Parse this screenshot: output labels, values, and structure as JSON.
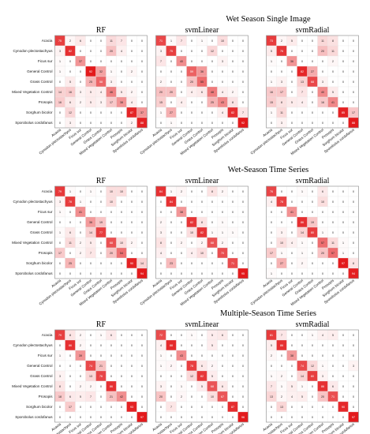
{
  "figure": {
    "sections": [
      {
        "title": "Wet Season Single Image",
        "panels": [
          {
            "method": "RF",
            "matrix": [
              [
                75,
                2,
                6,
                0,
                0,
                11,
                7,
                0,
                0
              ],
              [
                3,
                82,
                0,
                0,
                0,
                20,
                4,
                0,
                0
              ],
              [
                1,
                0,
                37,
                0,
                0,
                0,
                0,
                0,
                0
              ],
              [
                1,
                0,
                0,
                92,
                32,
                1,
                0,
                2,
                0
              ],
              [
                0,
                5,
                0,
                25,
                58,
                3,
                0,
                0,
                0
              ],
              [
                14,
                16,
                3,
                5,
                4,
                46,
                5,
                2,
                0
              ],
              [
                16,
                6,
                2,
                5,
                3,
                17,
                38,
                4,
                0
              ],
              [
                0,
                12,
                0,
                0,
                0,
                0,
                0,
                87,
                37
              ],
              [
                0,
                3,
                0,
                0,
                0,
                0,
                0,
                2,
                88
              ]
            ]
          },
          {
            "method": "svmLinear",
            "matrix": [
              [
                71,
                1,
                7,
                0,
                1,
                0,
                10,
                0,
                0
              ],
              [
                3,
                75,
                0,
                0,
                0,
                12,
                0,
                0,
                0
              ],
              [
                7,
                0,
                40,
                0,
                0,
                0,
                3,
                0,
                0
              ],
              [
                0,
                0,
                0,
                59,
                36,
                0,
                0,
                0,
                0
              ],
              [
                2,
                0,
                0,
                20,
                55,
                0,
                0,
                0,
                0
              ],
              [
                20,
                20,
                0,
                4,
                6,
                48,
                4,
                2,
                0
              ],
              [
                15,
                0,
                4,
                0,
                0,
                25,
                43,
                8,
                0
              ],
              [
                1,
                27,
                0,
                0,
                0,
                0,
                4,
                82,
                7
              ],
              [
                0,
                1,
                0,
                0,
                0,
                0,
                0,
                0,
                92
              ]
            ]
          },
          {
            "method": "svmRadial",
            "matrix": [
              [
                73,
                2,
                5,
                0,
                0,
                11,
                8,
                0,
                0
              ],
              [
                5,
                76,
                0,
                0,
                0,
                20,
                11,
                0,
                0
              ],
              [
                1,
                0,
                36,
                0,
                0,
                0,
                2,
                0,
                0
              ],
              [
                0,
                0,
                0,
                82,
                27,
                0,
                0,
                0,
                0
              ],
              [
                1,
                3,
                0,
                13,
                68,
                3,
                0,
                0,
                0
              ],
              [
                16,
                17,
                0,
                7,
                0,
                40,
                5,
                0,
                0
              ],
              [
                15,
                8,
                5,
                4,
                0,
                16,
                41,
                0,
                0
              ],
              [
                1,
                11,
                0,
                0,
                0,
                0,
                0,
                85,
                17
              ],
              [
                0,
                3,
                0,
                0,
                0,
                0,
                0,
                0,
                88
              ]
            ]
          }
        ]
      },
      {
        "title": "Wet-Season Time Series",
        "panels": [
          {
            "method": "RF",
            "matrix": [
              [
                79,
                1,
                0,
                1,
                0,
                10,
                10,
                0,
                0
              ],
              [
                3,
                78,
                1,
                0,
                0,
                10,
                0,
                0,
                0
              ],
              [
                1,
                0,
                41,
                0,
                0,
                0,
                0,
                0,
                0
              ],
              [
                0,
                0,
                0,
                36,
                19,
                0,
                0,
                0,
                0
              ],
              [
                1,
                6,
                0,
                14,
                77,
                0,
                0,
                0,
                0
              ],
              [
                0,
                11,
                2,
                5,
                0,
                68,
                10,
                2,
                0
              ],
              [
                17,
                0,
                2,
                7,
                0,
                20,
                54,
                0,
                0
              ],
              [
                0,
                25,
                0,
                0,
                0,
                0,
                0,
                90,
                14
              ],
              [
                0,
                0,
                0,
                0,
                0,
                0,
                0,
                0,
                94
              ]
            ]
          },
          {
            "method": "svmLinear",
            "matrix": [
              [
                84,
                1,
                2,
                0,
                0,
                8,
                2,
                0,
                0
              ],
              [
                0,
                84,
                0,
                0,
                0,
                0,
                0,
                0,
                0
              ],
              [
                0,
                0,
                38,
                0,
                0,
                0,
                0,
                0,
                0
              ],
              [
                2,
                0,
                0,
                82,
                8,
                0,
                1,
                0,
                0
              ],
              [
                3,
                0,
                0,
                10,
                82,
                1,
                1,
                1,
                0
              ],
              [
                8,
                0,
                2,
                0,
                2,
                68,
                2,
                0,
                0
              ],
              [
                4,
                0,
                0,
                4,
                10,
                0,
                70,
                0,
                0
              ],
              [
                0,
                23,
                0,
                0,
                0,
                0,
                0,
                71,
                0
              ],
              [
                0,
                0,
                0,
                0,
                0,
                0,
                0,
                0,
                95
              ]
            ]
          },
          {
            "method": "svmRadial",
            "matrix": [
              [
                76,
                0,
                0,
                1,
                0,
                6,
                0,
                0,
                0
              ],
              [
                4,
                78,
                0,
                0,
                0,
                10,
                0,
                0,
                0
              ],
              [
                0,
                0,
                41,
                0,
                0,
                0,
                0,
                0,
                0
              ],
              [
                0,
                0,
                0,
                86,
                19,
                0,
                0,
                0,
                0
              ],
              [
                0,
                3,
                0,
                14,
                80,
                1,
                0,
                0,
                0
              ],
              [
                0,
                10,
                4,
                1,
                0,
                57,
                11,
                1,
                0
              ],
              [
                17,
                1,
                0,
                1,
                0,
                20,
                57,
                1,
                0
              ],
              [
                0,
                27,
                0,
                2,
                0,
                0,
                0,
                97,
                8
              ],
              [
                1,
                0,
                0,
                0,
                0,
                0,
                0,
                0,
                94
              ]
            ]
          }
        ]
      },
      {
        "title": "Multiple-Season Time Series",
        "panels": [
          {
            "method": "RF",
            "matrix": [
              [
                79,
                8,
                2,
                0,
                1,
                6,
                0,
                0,
                0
              ],
              [
                0,
                86,
                2,
                0,
                0,
                0,
                0,
                0,
                0
              ],
              [
                1,
                0,
                39,
                0,
                0,
                0,
                0,
                0,
                0
              ],
              [
                0,
                0,
                0,
                74,
                21,
                0,
                0,
                0,
                0
              ],
              [
                3,
                0,
                0,
                13,
                76,
                0,
                0,
                0,
                0
              ],
              [
                8,
                0,
                2,
                2,
                0,
                86,
                0,
                0,
                0
              ],
              [
                18,
                6,
                5,
                7,
                0,
                21,
                42,
                0,
                0
              ],
              [
                0,
                17,
                0,
                0,
                0,
                0,
                0,
                93,
                0
              ],
              [
                0,
                0,
                0,
                0,
                0,
                0,
                0,
                0,
                97
              ]
            ]
          },
          {
            "method": "svmLinear",
            "matrix": [
              [
                72,
                0,
                0,
                1,
                0,
                5,
                6,
                0,
                0
              ],
              [
                4,
                88,
                0,
                0,
                0,
                5,
                0,
                0,
                0
              ],
              [
                1,
                0,
                43,
                0,
                0,
                0,
                0,
                0,
                0
              ],
              [
                1,
                2,
                0,
                78,
                6,
                2,
                0,
                0,
                0
              ],
              [
                0,
                0,
                0,
                12,
                82,
                5,
                0,
                0,
                0
              ],
              [
                3,
                0,
                1,
                0,
                5,
                68,
                6,
                0,
                0
              ],
              [
                20,
                0,
                2,
                0,
                0,
                10,
                67,
                0,
                0
              ],
              [
                0,
                7,
                0,
                0,
                0,
                0,
                0,
                87,
                0
              ],
              [
                0,
                0,
                0,
                0,
                0,
                0,
                0,
                0,
                96
              ]
            ]
          },
          {
            "method": "svmRadial",
            "matrix": [
              [
                81,
                7,
                0,
                0,
                1,
                4,
                5,
                0,
                0
              ],
              [
                5,
                86,
                0,
                0,
                0,
                0,
                0,
                0,
                0
              ],
              [
                2,
                0,
                38,
                0,
                0,
                0,
                0,
                0,
                0
              ],
              [
                0,
                0,
                0,
                74,
                12,
                1,
                0,
                0,
                3
              ],
              [
                1,
                2,
                0,
                14,
                80,
                3,
                0,
                0,
                0
              ],
              [
                7,
                1,
                5,
                1,
                0,
                86,
                6,
                0,
                0
              ],
              [
                13,
                2,
                4,
                5,
                0,
                20,
                71,
                0,
                0
              ],
              [
                0,
                13,
                0,
                0,
                0,
                0,
                0,
                90,
                0
              ],
              [
                0,
                0,
                0,
                0,
                0,
                0,
                0,
                0,
                97
              ]
            ]
          }
        ]
      }
    ],
    "class_labels": [
      "Acacia",
      "Cynodon plectostachyus",
      "Ficus sur",
      "General Control",
      "Grass Control",
      "Mixed Vegetation Control",
      "Prosopis",
      "Sorghum bicolor",
      "Sporobolus cordofanus"
    ],
    "colors": {
      "low": "#ffffff",
      "high": "#e31a1c",
      "text_dark": "#222222",
      "text_light": "#ffffff",
      "frame": "#8a8a8a"
    }
  },
  "chart_data": [
    {
      "type": "heatmap",
      "title": "RF",
      "group": "Wet Season Single Image"
    },
    {
      "type": "heatmap",
      "title": "svmLinear",
      "group": "Wet Season Single Image"
    },
    {
      "type": "heatmap",
      "title": "svmRadial",
      "group": "Wet Season Single Image"
    },
    {
      "type": "heatmap",
      "title": "RF",
      "group": "Wet-Season Time Series"
    },
    {
      "type": "heatmap",
      "title": "svmLinear",
      "group": "Wet-Season Time Series"
    },
    {
      "type": "heatmap",
      "title": "svmRadial",
      "group": "Wet-Season Time Series"
    },
    {
      "type": "heatmap",
      "title": "RF",
      "group": "Multiple-Season Time Series"
    },
    {
      "type": "heatmap",
      "title": "svmLinear",
      "group": "Multiple-Season Time Series"
    },
    {
      "type": "heatmap",
      "title": "svmRadial",
      "group": "Multiple-Season Time Series"
    }
  ]
}
